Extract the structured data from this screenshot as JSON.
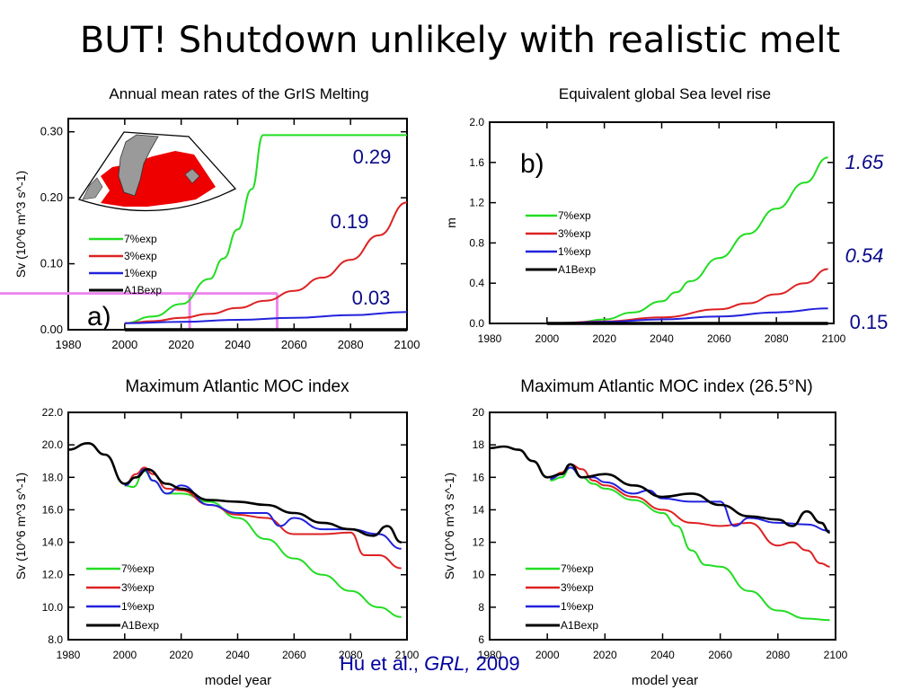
{
  "slide": {
    "title": "BUT!  Shutdown unlikely with realistic melt",
    "citation": {
      "authors": "Hu et al., ",
      "journal": "GRL,",
      "year": " 2009"
    }
  },
  "colors": {
    "green": "#22dd22",
    "red": "#dd2222",
    "blue": "#2222dd",
    "black": "#000000",
    "pink": "#ee88ee",
    "navy": "#0a0a8a"
  },
  "chart_data": [
    {
      "id": "a",
      "type": "line",
      "title": "Annual mean rates of the GrIS Melting",
      "ylabel": "Sv (10^6 m^3 s^-1)",
      "xlabel": "",
      "panel_label": "a)",
      "xlim": [
        1980,
        2100
      ],
      "ylim": [
        0,
        0.32
      ],
      "xticks": [
        "1980",
        "2000",
        "2020",
        "2040",
        "2060",
        "2080",
        "2100"
      ],
      "yticks": [
        "0.00",
        "0.10",
        "0.20",
        "0.30"
      ],
      "inset": "Greenland / North Atlantic map with red melt region",
      "legend": [
        "7%exp",
        "3%exp",
        "1%exp",
        "A1Bexp"
      ],
      "annotations": [
        "0.29",
        "0.19",
        "0.03"
      ],
      "highlight_lines": [
        2023,
        2054
      ],
      "highlight_level": 0.055,
      "series": [
        {
          "name": "7%exp",
          "color": "green",
          "x": [
            2000,
            2010,
            2020,
            2030,
            2035,
            2040,
            2045,
            2049,
            2060,
            2080,
            2100
          ],
          "y": [
            0.01,
            0.02,
            0.039,
            0.077,
            0.108,
            0.152,
            0.213,
            0.295,
            0.295,
            0.295,
            0.295
          ]
        },
        {
          "name": "3%exp",
          "color": "red",
          "x": [
            2000,
            2010,
            2020,
            2030,
            2040,
            2050,
            2060,
            2070,
            2080,
            2090,
            2100
          ],
          "y": [
            0.01,
            0.013,
            0.018,
            0.024,
            0.033,
            0.044,
            0.059,
            0.079,
            0.106,
            0.143,
            0.193
          ]
        },
        {
          "name": "1%exp",
          "color": "blue",
          "x": [
            2000,
            2020,
            2040,
            2060,
            2080,
            2100
          ],
          "y": [
            0.01,
            0.012,
            0.015,
            0.018,
            0.022,
            0.027
          ]
        },
        {
          "name": "A1Bexp",
          "color": "black",
          "x": [
            2000,
            2100
          ],
          "y": [
            0,
            0
          ]
        }
      ]
    },
    {
      "id": "b",
      "type": "line",
      "title": "Equivalent global Sea level rise",
      "ylabel": "m",
      "xlabel": "",
      "panel_label": "b)",
      "xlim": [
        1980,
        2100
      ],
      "ylim": [
        0,
        2.0
      ],
      "xticks": [
        "1980",
        "2000",
        "2020",
        "2040",
        "2060",
        "2080",
        "2100"
      ],
      "yticks": [
        "0.0",
        "0.4",
        "0.8",
        "1.2",
        "1.6",
        "2.0"
      ],
      "legend": [
        "7%exp",
        "3%exp",
        "1%exp",
        "A1Bexp"
      ],
      "annotations": [
        "1.65",
        "0.54",
        "0.15"
      ],
      "series": [
        {
          "name": "7%exp",
          "color": "green",
          "x": [
            2000,
            2010,
            2020,
            2030,
            2040,
            2045,
            2050,
            2060,
            2070,
            2080,
            2090,
            2098
          ],
          "y": [
            0,
            0.008,
            0.04,
            0.11,
            0.22,
            0.31,
            0.42,
            0.65,
            0.89,
            1.14,
            1.4,
            1.65
          ]
        },
        {
          "name": "3%exp",
          "color": "red",
          "x": [
            2000,
            2020,
            2040,
            2060,
            2070,
            2080,
            2090,
            2098
          ],
          "y": [
            0,
            0.02,
            0.06,
            0.14,
            0.2,
            0.29,
            0.4,
            0.54
          ]
        },
        {
          "name": "1%exp",
          "color": "blue",
          "x": [
            2000,
            2020,
            2040,
            2060,
            2080,
            2098
          ],
          "y": [
            0,
            0.015,
            0.04,
            0.07,
            0.11,
            0.15
          ]
        },
        {
          "name": "A1Bexp",
          "color": "black",
          "x": [
            2000,
            2098
          ],
          "y": [
            0,
            0
          ]
        }
      ]
    },
    {
      "id": "c",
      "type": "line",
      "title": "Maximum Atlantic MOC index",
      "ylabel": "Sv (10^6 m^3 s^-1)",
      "xlabel": "model year",
      "xlim": [
        1980,
        2100
      ],
      "ylim": [
        8,
        22
      ],
      "xticks": [
        "1980",
        "2000",
        "2020",
        "2040",
        "2060",
        "2080",
        "2100"
      ],
      "yticks": [
        "8.0",
        "10.0",
        "12.0",
        "14.0",
        "16.0",
        "18.0",
        "20.0",
        "22.0"
      ],
      "legend": [
        "7%exp",
        "3%exp",
        "1%exp",
        "A1Bexp"
      ],
      "series": [
        {
          "name": "7%exp",
          "color": "green",
          "x": [
            2000,
            2003,
            2007,
            2010,
            2015,
            2020,
            2030,
            2040,
            2050,
            2060,
            2070,
            2080,
            2090,
            2098
          ],
          "y": [
            17.5,
            17.4,
            18.4,
            17.8,
            17.0,
            17.0,
            16.5,
            15.5,
            14.2,
            13.0,
            12.0,
            11.0,
            10.0,
            9.4
          ]
        },
        {
          "name": "3%exp",
          "color": "red",
          "x": [
            2000,
            2004,
            2007,
            2010,
            2015,
            2020,
            2030,
            2040,
            2050,
            2060,
            2070,
            2080,
            2085,
            2090,
            2098
          ],
          "y": [
            17.5,
            18.2,
            18.6,
            18.2,
            17.3,
            17.2,
            16.3,
            15.7,
            15.5,
            14.5,
            14.5,
            14.6,
            13.2,
            13.2,
            12.4
          ]
        },
        {
          "name": "1%exp",
          "color": "blue",
          "x": [
            2000,
            2004,
            2007,
            2010,
            2015,
            2020,
            2030,
            2040,
            2050,
            2055,
            2060,
            2070,
            2080,
            2090,
            2098
          ],
          "y": [
            17.5,
            18.0,
            18.5,
            17.8,
            17.0,
            17.5,
            16.3,
            15.8,
            15.8,
            15.0,
            15.5,
            14.8,
            14.8,
            14.5,
            13.6
          ]
        },
        {
          "name": "A1Bexp",
          "color": "black",
          "x": [
            1980,
            1987,
            1993,
            2000,
            2004,
            2008,
            2015,
            2020,
            2030,
            2040,
            2050,
            2060,
            2070,
            2080,
            2088,
            2093,
            2098
          ],
          "y": [
            19.7,
            20.1,
            19.4,
            17.6,
            18.0,
            18.5,
            17.6,
            17.3,
            16.6,
            16.5,
            16.3,
            15.8,
            15.2,
            14.8,
            14.4,
            15.0,
            14.0
          ]
        }
      ]
    },
    {
      "id": "d",
      "type": "line",
      "title": "Maximum Atlantic MOC index (26.5°N)",
      "ylabel": "Sv (10^6 m^3 s^-1)",
      "xlabel": "model year",
      "xlim": [
        1980,
        2100
      ],
      "ylim": [
        6,
        20
      ],
      "xticks": [
        "1980",
        "2000",
        "2020",
        "2040",
        "2060",
        "2080",
        "2100"
      ],
      "yticks": [
        "6",
        "8",
        "10",
        "12",
        "14",
        "16",
        "18",
        "20"
      ],
      "legend": [
        "7%exp",
        "3%exp",
        "1%exp",
        "A1Bexp"
      ],
      "series": [
        {
          "name": "7%exp",
          "color": "green",
          "x": [
            2001,
            2005,
            2008,
            2012,
            2016,
            2020,
            2030,
            2040,
            2045,
            2050,
            2055,
            2060,
            2070,
            2080,
            2090,
            2098
          ],
          "y": [
            15.8,
            16.0,
            16.6,
            16.0,
            15.6,
            15.3,
            14.6,
            13.8,
            13.0,
            11.5,
            10.6,
            10.5,
            9.0,
            7.8,
            7.3,
            7.2
          ]
        },
        {
          "name": "3%exp",
          "color": "red",
          "x": [
            2001,
            2005,
            2008,
            2012,
            2016,
            2020,
            2030,
            2040,
            2050,
            2060,
            2070,
            2080,
            2085,
            2090,
            2095,
            2098
          ],
          "y": [
            15.9,
            16.3,
            16.8,
            16.5,
            15.8,
            15.5,
            14.8,
            14.0,
            13.2,
            13.0,
            13.2,
            11.8,
            12.0,
            11.5,
            10.7,
            10.5
          ]
        },
        {
          "name": "1%exp",
          "color": "blue",
          "x": [
            2001,
            2005,
            2008,
            2012,
            2016,
            2020,
            2030,
            2035,
            2040,
            2050,
            2060,
            2065,
            2070,
            2080,
            2090,
            2098
          ],
          "y": [
            15.9,
            16.2,
            16.6,
            16.0,
            16.0,
            15.7,
            15.0,
            15.2,
            14.7,
            14.5,
            14.5,
            13.0,
            13.5,
            13.2,
            13.1,
            12.7
          ]
        },
        {
          "name": "A1Bexp",
          "color": "black",
          "x": [
            1980,
            1985,
            1990,
            1995,
            2000,
            2005,
            2008,
            2012,
            2020,
            2030,
            2040,
            2050,
            2060,
            2070,
            2080,
            2085,
            2090,
            2095,
            2098
          ],
          "y": [
            17.8,
            17.9,
            17.7,
            17.0,
            16.0,
            16.2,
            16.8,
            16.0,
            16.2,
            15.5,
            14.8,
            15.0,
            14.3,
            13.6,
            13.4,
            13.0,
            13.9,
            13.2,
            12.6
          ]
        }
      ]
    }
  ]
}
